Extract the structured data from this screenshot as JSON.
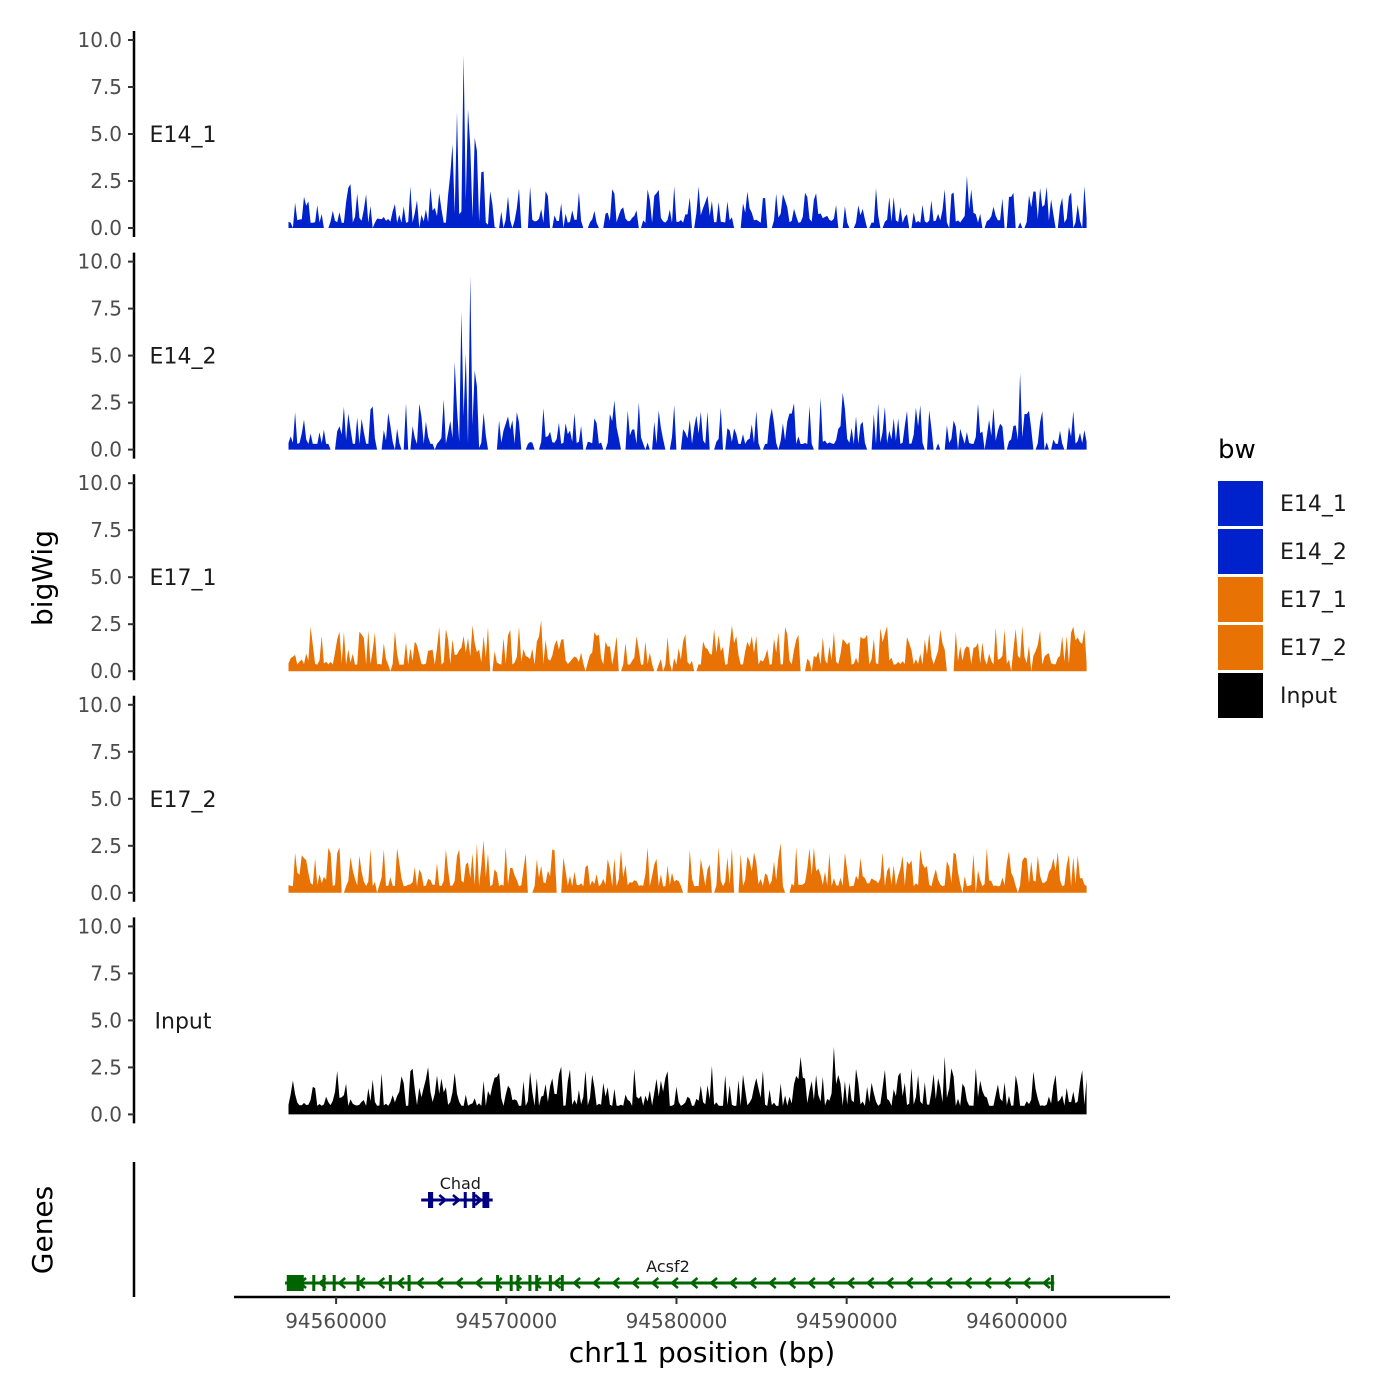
{
  "chart_data": {
    "type": "area",
    "y_axis_title": "bigWig",
    "genes_axis_title": "Genes",
    "x_axis_title": "chr11 position (bp)",
    "xlim": [
      94554000,
      94609000
    ],
    "signal_range": [
      94557200,
      94604100
    ],
    "x_ticks": [
      {
        "value": 94560000,
        "label": "94560000"
      },
      {
        "value": 94570000,
        "label": "94570000"
      },
      {
        "value": 94580000,
        "label": "94580000"
      },
      {
        "value": 94590000,
        "label": "94590000"
      },
      {
        "value": 94600000,
        "label": "94600000"
      }
    ],
    "ylim": [
      0,
      10.0
    ],
    "y_ticks": [
      {
        "value": 0,
        "label": "0.0"
      },
      {
        "value": 2.5,
        "label": "2.5"
      },
      {
        "value": 5,
        "label": "5.0"
      },
      {
        "value": 7.5,
        "label": "7.5"
      },
      {
        "value": 10,
        "label": "10.0"
      }
    ],
    "legend": {
      "title": "bw",
      "entries": [
        {
          "label": "E14_1",
          "color": "#0022CC"
        },
        {
          "label": "E14_2",
          "color": "#0022CC"
        },
        {
          "label": "E17_1",
          "color": "#E87203"
        },
        {
          "label": "E17_2",
          "color": "#E87203"
        },
        {
          "label": "Input",
          "color": "#000000"
        }
      ]
    },
    "series": [
      {
        "name": "E14_1",
        "label": "E14_1",
        "color": "#0022CC",
        "seed": 11,
        "base": 0.28,
        "noise": 0.9,
        "gap_rate": 0.12,
        "peaks": [
          {
            "x": 94566800,
            "h": 5.0,
            "w": 120
          },
          {
            "x": 94567100,
            "h": 6.2,
            "w": 90
          },
          {
            "x": 94567500,
            "h": 9.3,
            "w": 90
          },
          {
            "x": 94567800,
            "h": 7.6,
            "w": 110
          },
          {
            "x": 94568200,
            "h": 6.0,
            "w": 120
          },
          {
            "x": 94568600,
            "h": 4.0,
            "w": 120
          },
          {
            "x": 94569100,
            "h": 2.3,
            "w": 110
          },
          {
            "x": 94586200,
            "h": 2.0,
            "w": 80
          },
          {
            "x": 94599600,
            "h": 2.9,
            "w": 80
          },
          {
            "x": 94601400,
            "h": 2.6,
            "w": 80
          },
          {
            "x": 94603100,
            "h": 2.2,
            "w": 80
          }
        ]
      },
      {
        "name": "E14_2",
        "label": "E14_2",
        "color": "#0022CC",
        "seed": 23,
        "base": 0.3,
        "noise": 1.0,
        "gap_rate": 0.1,
        "peaks": [
          {
            "x": 94566300,
            "h": 2.8,
            "w": 90
          },
          {
            "x": 94567000,
            "h": 5.0,
            "w": 110
          },
          {
            "x": 94567400,
            "h": 9.9,
            "w": 70
          },
          {
            "x": 94567600,
            "h": 5.5,
            "w": 80
          },
          {
            "x": 94567900,
            "h": 9.8,
            "w": 70
          },
          {
            "x": 94568200,
            "h": 5.8,
            "w": 100
          },
          {
            "x": 94568700,
            "h": 2.3,
            "w": 90
          },
          {
            "x": 94570300,
            "h": 3.1,
            "w": 70
          },
          {
            "x": 94585600,
            "h": 2.2,
            "w": 80
          },
          {
            "x": 94592800,
            "h": 2.0,
            "w": 80
          },
          {
            "x": 94600200,
            "h": 4.1,
            "w": 90
          },
          {
            "x": 94603100,
            "h": 1.6,
            "w": 80
          }
        ]
      },
      {
        "name": "E17_1",
        "label": "E17_1",
        "color": "#E87203",
        "seed": 37,
        "base": 0.35,
        "noise": 0.95,
        "gap_rate": 0.06,
        "peaks": [
          {
            "x": 94566500,
            "h": 1.6,
            "w": 110
          },
          {
            "x": 94567300,
            "h": 2.0,
            "w": 90
          },
          {
            "x": 94567700,
            "h": 3.1,
            "w": 70
          },
          {
            "x": 94568000,
            "h": 2.5,
            "w": 80
          },
          {
            "x": 94570100,
            "h": 1.9,
            "w": 80
          },
          {
            "x": 94576000,
            "h": 1.8,
            "w": 70
          },
          {
            "x": 94586000,
            "h": 2.1,
            "w": 70
          },
          {
            "x": 94602700,
            "h": 2.2,
            "w": 80
          }
        ]
      },
      {
        "name": "E17_2",
        "label": "E17_2",
        "color": "#E87203",
        "seed": 41,
        "base": 0.35,
        "noise": 0.95,
        "gap_rate": 0.04,
        "peaks": [
          {
            "x": 94558200,
            "h": 2.3,
            "w": 80
          },
          {
            "x": 94566500,
            "h": 2.0,
            "w": 110
          },
          {
            "x": 94567200,
            "h": 2.6,
            "w": 90
          },
          {
            "x": 94567800,
            "h": 2.3,
            "w": 80
          },
          {
            "x": 94568700,
            "h": 3.4,
            "w": 80
          },
          {
            "x": 94586100,
            "h": 2.9,
            "w": 70
          },
          {
            "x": 94600300,
            "h": 1.8,
            "w": 90
          }
        ]
      },
      {
        "name": "Input",
        "label": "Input",
        "color": "#000000",
        "seed": 53,
        "base": 0.45,
        "noise": 0.95,
        "gap_rate": 0.0,
        "peaks": [
          {
            "x": 94557500,
            "h": 2.3,
            "w": 80
          },
          {
            "x": 94565500,
            "h": 1.5,
            "w": 80
          },
          {
            "x": 94571000,
            "h": 1.8,
            "w": 80
          },
          {
            "x": 94584500,
            "h": 1.6,
            "w": 90
          },
          {
            "x": 94587300,
            "h": 3.1,
            "w": 60
          },
          {
            "x": 94600000,
            "h": 2.4,
            "w": 90
          }
        ]
      }
    ],
    "genes": [
      {
        "name": "Chad",
        "color": "#000080",
        "strand": "+",
        "row": 1,
        "start": 94565000,
        "end": 94569200,
        "label_x": 94567300,
        "exons": [
          [
            94565400,
            94565700
          ],
          [
            94567500,
            94567600
          ],
          [
            94568000,
            94568100
          ],
          [
            94568600,
            94569000
          ]
        ],
        "arrows": [
          94566300,
          94567100,
          94568400
        ]
      },
      {
        "name": "Acsf2",
        "color": "#006400",
        "strand": "-",
        "row": 0,
        "start": 94557000,
        "end": 94602200,
        "label_x": 94579500,
        "exons": [
          [
            94557100,
            94558100
          ],
          [
            94558600,
            94558700
          ],
          [
            94559200,
            94559300
          ],
          [
            94559800,
            94559900
          ],
          [
            94561200,
            94561300
          ],
          [
            94563100,
            94563200
          ],
          [
            94564200,
            94564300
          ],
          [
            94569400,
            94569500
          ],
          [
            94570200,
            94570300
          ],
          [
            94570600,
            94570700
          ],
          [
            94571300,
            94571400
          ],
          [
            94571700,
            94571800
          ],
          [
            94572500,
            94572600
          ],
          [
            94573200,
            94573300
          ],
          [
            94602000,
            94602150
          ]
        ],
        "arrows": "auto"
      }
    ]
  }
}
